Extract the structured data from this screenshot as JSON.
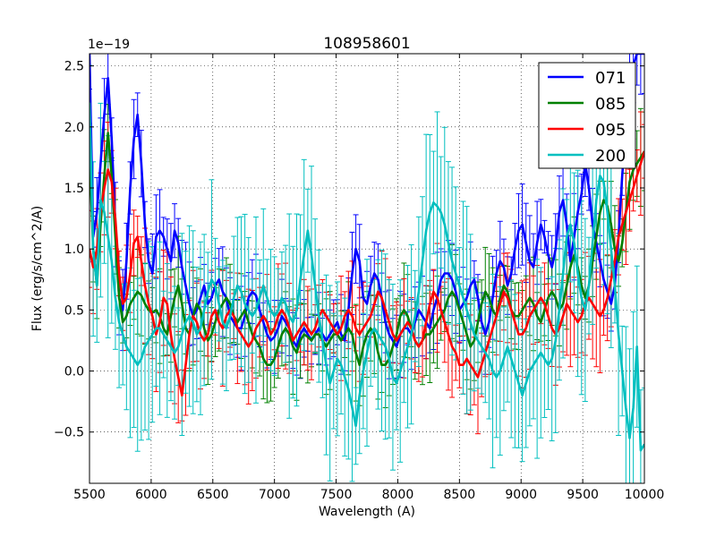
{
  "chart_data": {
    "type": "line",
    "title": "108958601",
    "xlabel": "Wavelength (A)",
    "ylabel": "Flux (erg/s/cm^2/A)",
    "offset_label": "1e−19",
    "xlim": [
      5500,
      10000
    ],
    "ylim": [
      -0.92,
      2.6
    ],
    "xticks": [
      5500,
      6000,
      6500,
      7000,
      7500,
      8000,
      8500,
      9000,
      9500,
      10000
    ],
    "xtick_labels": [
      "5500",
      "6000",
      "6500",
      "7000",
      "7500",
      "8000",
      "8500",
      "9000",
      "9500",
      "10000"
    ],
    "yticks": [
      -0.5,
      0.0,
      0.5,
      1.0,
      1.5,
      2.0,
      2.5
    ],
    "ytick_labels": [
      "−0.5",
      "0.0",
      "0.5",
      "1.0",
      "1.5",
      "2.0",
      "2.5"
    ],
    "grid": true,
    "legend_position": "top-right",
    "x": [
      5500,
      5530,
      5560,
      5590,
      5620,
      5650,
      5680,
      5710,
      5740,
      5770,
      5800,
      5830,
      5860,
      5890,
      5920,
      5950,
      5980,
      6010,
      6040,
      6070,
      6100,
      6130,
      6160,
      6190,
      6220,
      6250,
      6280,
      6310,
      6340,
      6370,
      6400,
      6430,
      6460,
      6490,
      6520,
      6550,
      6580,
      6610,
      6640,
      6670,
      6700,
      6730,
      6760,
      6790,
      6820,
      6850,
      6880,
      6910,
      6940,
      6970,
      7000,
      7030,
      7060,
      7090,
      7120,
      7150,
      7180,
      7210,
      7240,
      7270,
      7300,
      7330,
      7360,
      7390,
      7420,
      7450,
      7480,
      7510,
      7540,
      7570,
      7600,
      7630,
      7660,
      7690,
      7720,
      7750,
      7780,
      7810,
      7840,
      7870,
      7900,
      7930,
      7960,
      7990,
      8020,
      8050,
      8080,
      8110,
      8140,
      8170,
      8200,
      8230,
      8260,
      8290,
      8320,
      8350,
      8380,
      8410,
      8440,
      8470,
      8500,
      8530,
      8560,
      8590,
      8620,
      8650,
      8680,
      8710,
      8740,
      8770,
      8800,
      8830,
      8860,
      8890,
      8920,
      8950,
      8980,
      9010,
      9040,
      9070,
      9100,
      9130,
      9160,
      9190,
      9220,
      9250,
      9280,
      9310,
      9340,
      9370,
      9400,
      9430,
      9460,
      9490,
      9520,
      9550,
      9580,
      9610,
      9640,
      9670,
      9700,
      9730,
      9760,
      9790,
      9820,
      9850,
      9880,
      9910,
      9940,
      9970,
      10000
    ],
    "series": [
      {
        "name": "071",
        "color": "#0000ff",
        "values": [
          2.6,
          1.1,
          1.3,
          1.7,
          2.1,
          2.4,
          1.9,
          1.2,
          0.6,
          0.5,
          0.9,
          1.5,
          1.9,
          2.1,
          1.7,
          1.2,
          0.9,
          0.8,
          1.1,
          1.15,
          1.1,
          1.0,
          0.9,
          1.15,
          1.05,
          0.85,
          0.7,
          0.55,
          0.45,
          0.5,
          0.6,
          0.7,
          0.55,
          0.6,
          0.7,
          0.75,
          0.65,
          0.6,
          0.45,
          0.4,
          0.35,
          0.35,
          0.45,
          0.6,
          0.65,
          0.62,
          0.5,
          0.4,
          0.3,
          0.25,
          0.28,
          0.35,
          0.45,
          0.4,
          0.35,
          0.25,
          0.2,
          0.3,
          0.35,
          0.3,
          0.25,
          0.3,
          0.35,
          0.3,
          0.25,
          0.3,
          0.35,
          0.4,
          0.3,
          0.25,
          0.5,
          0.8,
          1.0,
          0.9,
          0.6,
          0.55,
          0.7,
          0.8,
          0.75,
          0.6,
          0.4,
          0.3,
          0.25,
          0.2,
          0.3,
          0.35,
          0.35,
          0.3,
          0.4,
          0.5,
          0.45,
          0.4,
          0.35,
          0.5,
          0.6,
          0.75,
          0.8,
          0.8,
          0.75,
          0.65,
          0.5,
          0.55,
          0.6,
          0.7,
          0.75,
          0.6,
          0.4,
          0.3,
          0.4,
          0.6,
          0.8,
          0.9,
          0.85,
          0.7,
          0.8,
          1.0,
          1.15,
          1.2,
          1.05,
          0.9,
          0.85,
          1.05,
          1.2,
          1.1,
          0.95,
          0.85,
          1.0,
          1.3,
          1.4,
          1.2,
          0.9,
          1.1,
          1.3,
          1.45,
          1.7,
          1.5,
          1.2,
          1.05,
          0.9,
          0.75,
          0.65,
          0.55,
          0.7,
          1.1,
          1.6,
          2.0,
          2.3,
          2.5,
          2.6,
          2.6,
          2.6
        ]
      },
      {
        "name": "085",
        "color": "#008000",
        "values": [
          1.8,
          1.0,
          0.7,
          1.2,
          1.6,
          1.95,
          1.6,
          1.1,
          0.6,
          0.4,
          0.45,
          0.55,
          0.6,
          0.65,
          0.62,
          0.55,
          0.5,
          0.48,
          0.5,
          0.45,
          0.35,
          0.3,
          0.45,
          0.6,
          0.7,
          0.55,
          0.35,
          0.3,
          0.45,
          0.55,
          0.5,
          0.35,
          0.25,
          0.3,
          0.4,
          0.5,
          0.55,
          0.6,
          0.55,
          0.45,
          0.4,
          0.45,
          0.5,
          0.4,
          0.3,
          0.25,
          0.2,
          0.1,
          0.05,
          0.05,
          0.1,
          0.2,
          0.3,
          0.35,
          0.3,
          0.2,
          0.15,
          0.25,
          0.3,
          0.28,
          0.25,
          0.3,
          0.3,
          0.25,
          0.2,
          0.25,
          0.3,
          0.3,
          0.25,
          0.3,
          0.35,
          0.3,
          0.15,
          0.05,
          0.2,
          0.3,
          0.35,
          0.3,
          0.15,
          0.05,
          0.05,
          0.1,
          0.2,
          0.3,
          0.45,
          0.5,
          0.45,
          0.35,
          0.25,
          0.2,
          0.25,
          0.3,
          0.3,
          0.35,
          0.4,
          0.45,
          0.5,
          0.6,
          0.65,
          0.6,
          0.5,
          0.4,
          0.3,
          0.2,
          0.25,
          0.4,
          0.55,
          0.65,
          0.6,
          0.5,
          0.45,
          0.6,
          0.7,
          0.65,
          0.5,
          0.45,
          0.45,
          0.5,
          0.55,
          0.6,
          0.55,
          0.45,
          0.4,
          0.5,
          0.6,
          0.65,
          0.6,
          0.5,
          0.55,
          0.7,
          0.85,
          0.95,
          0.85,
          0.7,
          0.6,
          0.7,
          0.9,
          1.1,
          1.3,
          1.4,
          1.35,
          1.2,
          1.0,
          0.9,
          1.05,
          1.3,
          1.55,
          1.65,
          1.7,
          1.75,
          1.8
        ]
      },
      {
        "name": "095",
        "color": "#ff0000",
        "values": [
          1.0,
          0.85,
          1.0,
          1.3,
          1.5,
          1.65,
          1.55,
          1.25,
          0.8,
          0.55,
          0.6,
          0.8,
          1.05,
          1.1,
          0.9,
          0.7,
          0.55,
          0.45,
          0.3,
          0.4,
          0.6,
          0.55,
          0.3,
          0.1,
          -0.05,
          -0.2,
          0.05,
          0.3,
          0.45,
          0.4,
          0.3,
          0.25,
          0.3,
          0.45,
          0.5,
          0.4,
          0.35,
          0.45,
          0.5,
          0.45,
          0.35,
          0.3,
          0.25,
          0.2,
          0.25,
          0.35,
          0.4,
          0.45,
          0.4,
          0.3,
          0.35,
          0.45,
          0.5,
          0.45,
          0.35,
          0.25,
          0.3,
          0.35,
          0.4,
          0.35,
          0.3,
          0.35,
          0.45,
          0.5,
          0.45,
          0.4,
          0.35,
          0.3,
          0.35,
          0.45,
          0.5,
          0.45,
          0.35,
          0.3,
          0.35,
          0.4,
          0.45,
          0.55,
          0.65,
          0.6,
          0.5,
          0.4,
          0.3,
          0.25,
          0.3,
          0.35,
          0.4,
          0.35,
          0.25,
          0.2,
          0.25,
          0.4,
          0.55,
          0.65,
          0.6,
          0.5,
          0.4,
          0.3,
          0.2,
          0.15,
          0.05,
          0.05,
          0.1,
          0.05,
          0.0,
          -0.05,
          0.05,
          0.15,
          0.25,
          0.35,
          0.45,
          0.55,
          0.65,
          0.6,
          0.5,
          0.4,
          0.3,
          0.3,
          0.35,
          0.45,
          0.5,
          0.55,
          0.6,
          0.55,
          0.45,
          0.35,
          0.3,
          0.35,
          0.45,
          0.55,
          0.5,
          0.45,
          0.4,
          0.45,
          0.55,
          0.6,
          0.55,
          0.5,
          0.45,
          0.5,
          0.6,
          0.75,
          0.9,
          1.1,
          1.2,
          1.3,
          1.4,
          1.5,
          1.6,
          1.7,
          1.8
        ]
      },
      {
        "name": "200",
        "color": "#00bfbf",
        "values": [
          2.2,
          1.0,
          0.7,
          1.4,
          1.3,
          1.1,
          0.9,
          0.6,
          0.4,
          0.3,
          0.2,
          0.15,
          0.1,
          0.05,
          0.1,
          0.2,
          0.25,
          0.3,
          0.35,
          0.35,
          0.3,
          0.25,
          0.2,
          0.15,
          0.2,
          0.3,
          0.4,
          0.45,
          0.4,
          0.3,
          0.35,
          0.5,
          0.65,
          0.75,
          0.7,
          0.55,
          0.4,
          0.35,
          0.45,
          0.6,
          0.7,
          0.65,
          0.55,
          0.5,
          0.45,
          0.5,
          0.6,
          0.7,
          0.6,
          0.5,
          0.45,
          0.5,
          0.6,
          0.55,
          0.45,
          0.4,
          0.5,
          0.75,
          0.95,
          1.15,
          0.95,
          0.7,
          0.45,
          0.25,
          0.05,
          -0.1,
          0.0,
          0.1,
          0.05,
          -0.05,
          -0.15,
          -0.3,
          -0.45,
          -0.2,
          0.0,
          0.15,
          0.3,
          0.35,
          0.3,
          0.25,
          0.2,
          0.1,
          -0.05,
          -0.1,
          0.0,
          0.1,
          0.2,
          0.3,
          0.45,
          0.65,
          0.9,
          1.15,
          1.3,
          1.38,
          1.35,
          1.3,
          1.2,
          1.05,
          0.9,
          0.8,
          0.7,
          0.6,
          0.5,
          0.4,
          0.3,
          0.25,
          0.2,
          0.15,
          0.1,
          0.0,
          -0.05,
          0.0,
          0.1,
          0.2,
          0.1,
          0.0,
          -0.1,
          -0.2,
          -0.1,
          0.0,
          0.05,
          0.1,
          0.15,
          0.1,
          0.05,
          0.1,
          0.25,
          0.5,
          0.8,
          1.1,
          1.2,
          1.05,
          0.8,
          0.6,
          0.5,
          0.7,
          1.05,
          1.4,
          1.6,
          1.55,
          1.3,
          1.0,
          0.7,
          0.3,
          0.0,
          -0.3,
          -0.55,
          -0.3,
          0.2,
          -0.65,
          -0.6
        ]
      }
    ]
  }
}
